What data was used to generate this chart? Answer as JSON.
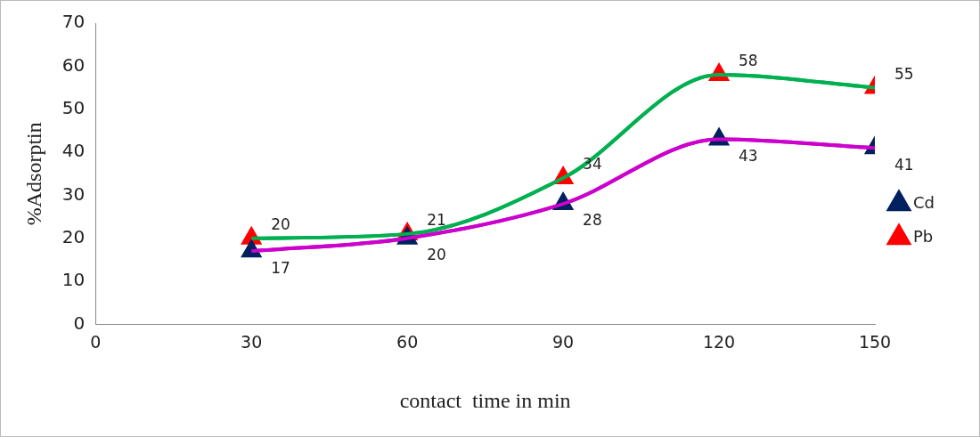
{
  "chart_data": {
    "type": "line",
    "xlabel": "contact  time in min",
    "ylabel": "%Adsorptin",
    "x": [
      30,
      60,
      90,
      120,
      150
    ],
    "series": [
      {
        "name": "Cd",
        "color": "#cc00cc",
        "colors": [
          "#002060",
          "#002060",
          "#002060",
          "#002060",
          "#002060"
        ],
        "values": [
          17,
          20,
          28,
          43,
          41
        ]
      },
      {
        "name": "Pb",
        "color": "#00b050",
        "colors": [
          "#ff0000",
          "#ff0000",
          "#ff0000",
          "#ff0000",
          "#ff0000"
        ],
        "values": [
          20,
          21,
          34,
          58,
          55
        ]
      }
    ],
    "xlim": [
      0,
      150
    ],
    "xticks": [
      0,
      30,
      60,
      90,
      120,
      150
    ],
    "ylim": [
      0,
      70
    ],
    "yticks": [
      0,
      10,
      20,
      30,
      40,
      50,
      60,
      70
    ],
    "grid": false,
    "legend": "right",
    "marker": "triangle",
    "line_style": "solid",
    "data_labels": true
  }
}
